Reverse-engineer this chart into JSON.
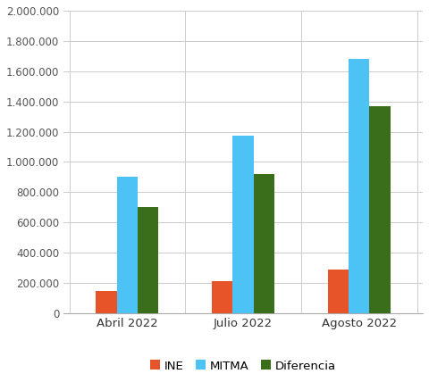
{
  "categories": [
    "Abril 2022",
    "Julio 2022",
    "Agosto 2022"
  ],
  "series": {
    "INE": [
      150000,
      210000,
      290000
    ],
    "MITMA": [
      900000,
      1175000,
      1680000
    ],
    "Diferencia": [
      700000,
      920000,
      1370000
    ]
  },
  "colors": {
    "INE": "#E8542A",
    "MITMA": "#4DC3F5",
    "Diferencia": "#3A6E1A"
  },
  "ylim": [
    0,
    2000000
  ],
  "yticks": [
    0,
    200000,
    400000,
    600000,
    800000,
    1000000,
    1200000,
    1400000,
    1600000,
    1800000,
    2000000
  ],
  "ytick_labels": [
    "0",
    "200.000",
    "400.000",
    "600.000",
    "800.000",
    "1.000.000",
    "1.200.000",
    "1.400.000",
    "1.600.000",
    "1.800.000",
    "2.000.000"
  ],
  "background_color": "#ffffff",
  "grid_color": "#cccccc",
  "bar_width": 0.18,
  "figsize": [
    4.8,
    4.28
  ],
  "dpi": 100
}
